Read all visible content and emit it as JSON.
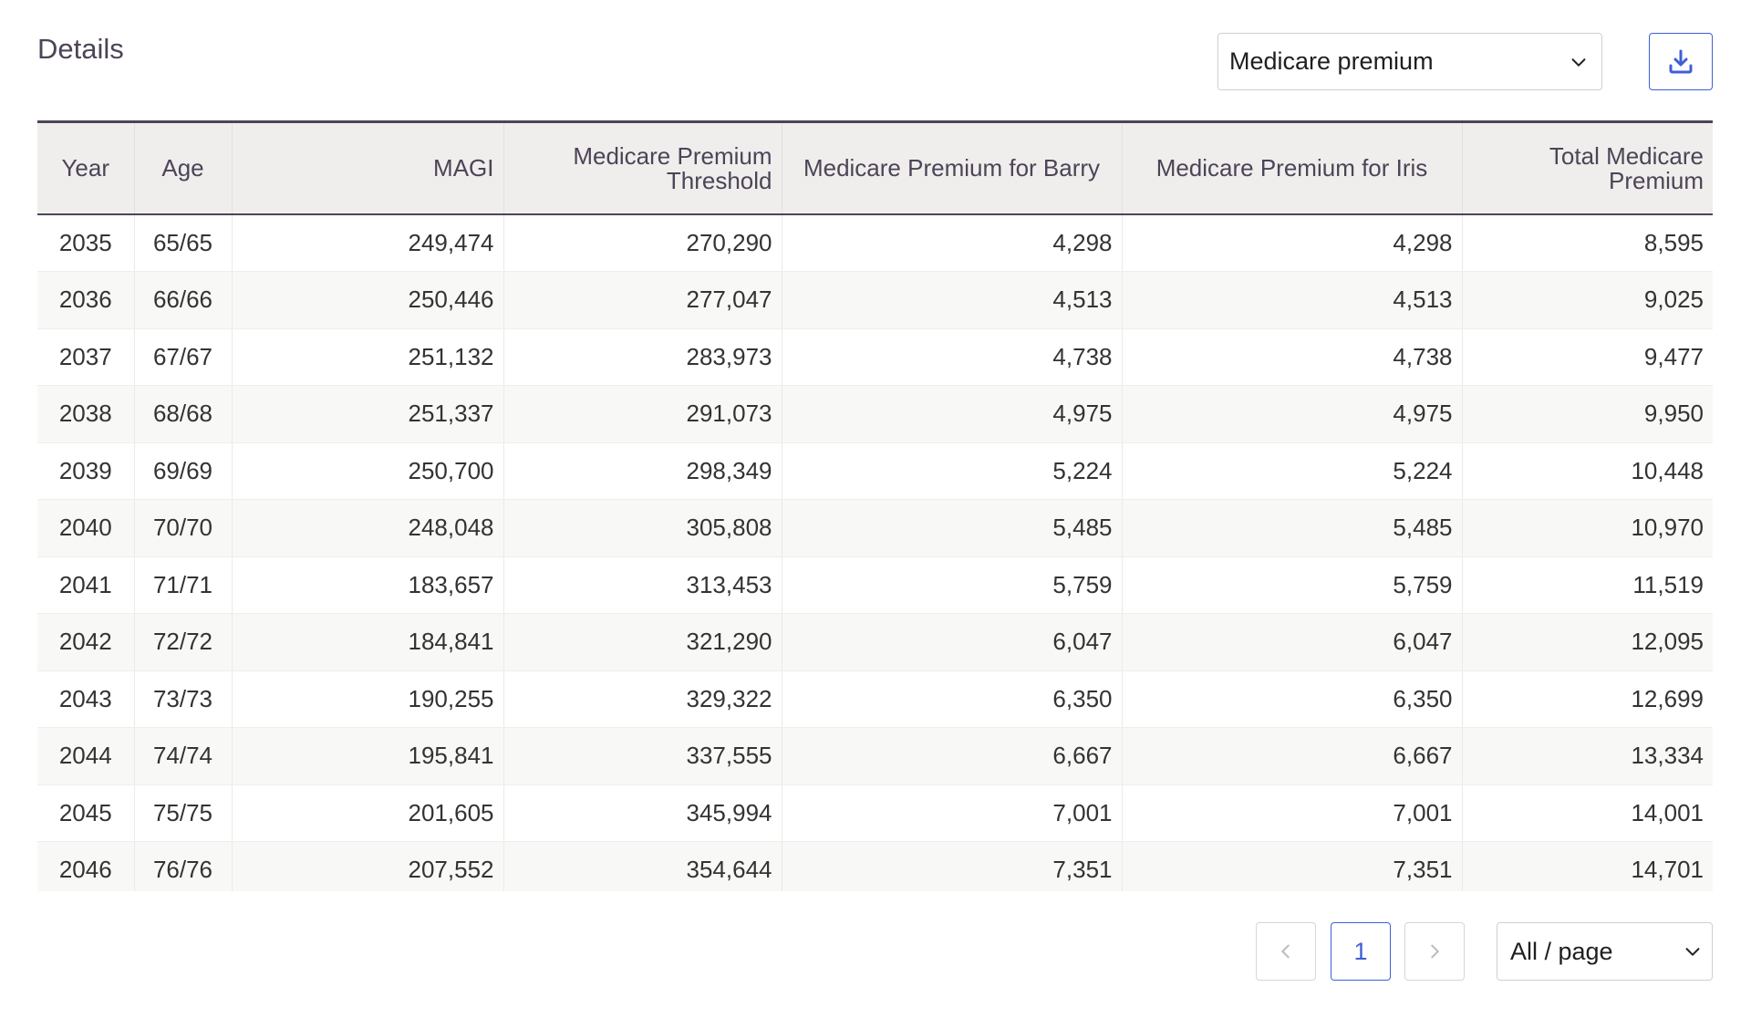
{
  "header": {
    "title": "Details",
    "view_select_value": "Medicare premium"
  },
  "table": {
    "columns": [
      "Year",
      "Age",
      "MAGI",
      "Medicare Premium Threshold",
      "Medicare Premium for Barry",
      "Medicare Premium for Iris",
      "Total Medicare Premium"
    ],
    "rows": [
      [
        "2035",
        "65/65",
        "249,474",
        "270,290",
        "4,298",
        "4,298",
        "8,595"
      ],
      [
        "2036",
        "66/66",
        "250,446",
        "277,047",
        "4,513",
        "4,513",
        "9,025"
      ],
      [
        "2037",
        "67/67",
        "251,132",
        "283,973",
        "4,738",
        "4,738",
        "9,477"
      ],
      [
        "2038",
        "68/68",
        "251,337",
        "291,073",
        "4,975",
        "4,975",
        "9,950"
      ],
      [
        "2039",
        "69/69",
        "250,700",
        "298,349",
        "5,224",
        "5,224",
        "10,448"
      ],
      [
        "2040",
        "70/70",
        "248,048",
        "305,808",
        "5,485",
        "5,485",
        "10,970"
      ],
      [
        "2041",
        "71/71",
        "183,657",
        "313,453",
        "5,759",
        "5,759",
        "11,519"
      ],
      [
        "2042",
        "72/72",
        "184,841",
        "321,290",
        "6,047",
        "6,047",
        "12,095"
      ],
      [
        "2043",
        "73/73",
        "190,255",
        "329,322",
        "6,350",
        "6,350",
        "12,699"
      ],
      [
        "2044",
        "74/74",
        "195,841",
        "337,555",
        "6,667",
        "6,667",
        "13,334"
      ],
      [
        "2045",
        "75/75",
        "201,605",
        "345,994",
        "7,001",
        "7,001",
        "14,001"
      ],
      [
        "2046",
        "76/76",
        "207,552",
        "354,644",
        "7,351",
        "7,351",
        "14,701"
      ]
    ]
  },
  "pagination": {
    "current_page": "1",
    "page_size_value": "All / page"
  },
  "icons": {
    "download": "download-icon",
    "chevron": "chevron-down-icon",
    "prev": "chevron-left-icon",
    "next": "chevron-right-icon"
  },
  "colors": {
    "accent": "#3f5fd6",
    "header_text": "#4d4458",
    "header_bg": "#efeeec"
  }
}
